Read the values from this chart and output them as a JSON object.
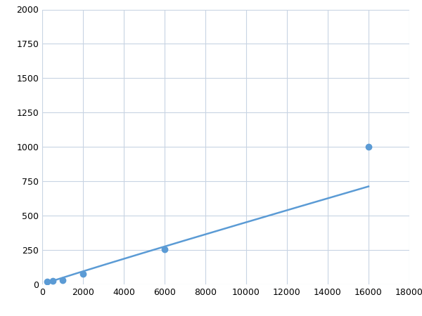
{
  "x": [
    250,
    500,
    1000,
    2000,
    6000,
    16000
  ],
  "y": [
    20,
    25,
    30,
    75,
    255,
    1000
  ],
  "line_color": "#5b9bd5",
  "marker_color": "#5b9bd5",
  "marker_size": 6,
  "line_width": 1.8,
  "xlim": [
    0,
    18000
  ],
  "ylim": [
    0,
    2000
  ],
  "xticks": [
    0,
    2000,
    4000,
    6000,
    8000,
    10000,
    12000,
    14000,
    16000,
    18000
  ],
  "yticks": [
    0,
    250,
    500,
    750,
    1000,
    1250,
    1500,
    1750,
    2000
  ],
  "grid_color": "#c8d4e3",
  "background_color": "#ffffff",
  "tick_fontsize": 9,
  "figsize": [
    6.0,
    4.5
  ],
  "dpi": 100
}
